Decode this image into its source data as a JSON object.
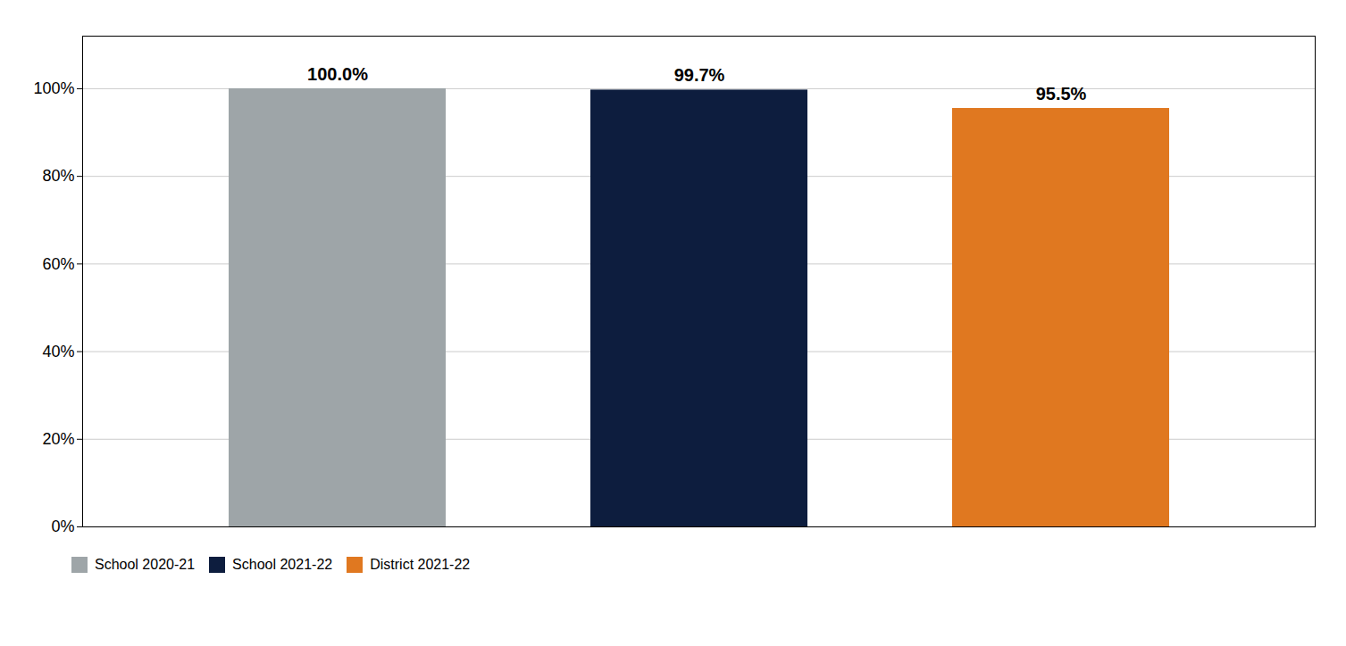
{
  "chart_data": {
    "type": "bar",
    "categories": [
      "School 2020-21",
      "School 2021-22",
      "District 2021-22"
    ],
    "values": [
      100.0,
      99.7,
      95.5
    ],
    "value_labels": [
      "100.0%",
      "99.7%",
      "95.5%"
    ],
    "colors": [
      "#9EA5A8",
      "#0D1D3E",
      "#E07820"
    ],
    "ylim": [
      0,
      112
    ],
    "yticks": [
      {
        "value": 0,
        "label": "0%"
      },
      {
        "value": 20,
        "label": "20%"
      },
      {
        "value": 40,
        "label": "40%"
      },
      {
        "value": 60,
        "label": "60%"
      },
      {
        "value": 80,
        "label": "80%"
      },
      {
        "value": 100,
        "label": "100%"
      }
    ],
    "grid": true,
    "data_labels": true,
    "tick_labels": "y",
    "legend": "bottom"
  }
}
